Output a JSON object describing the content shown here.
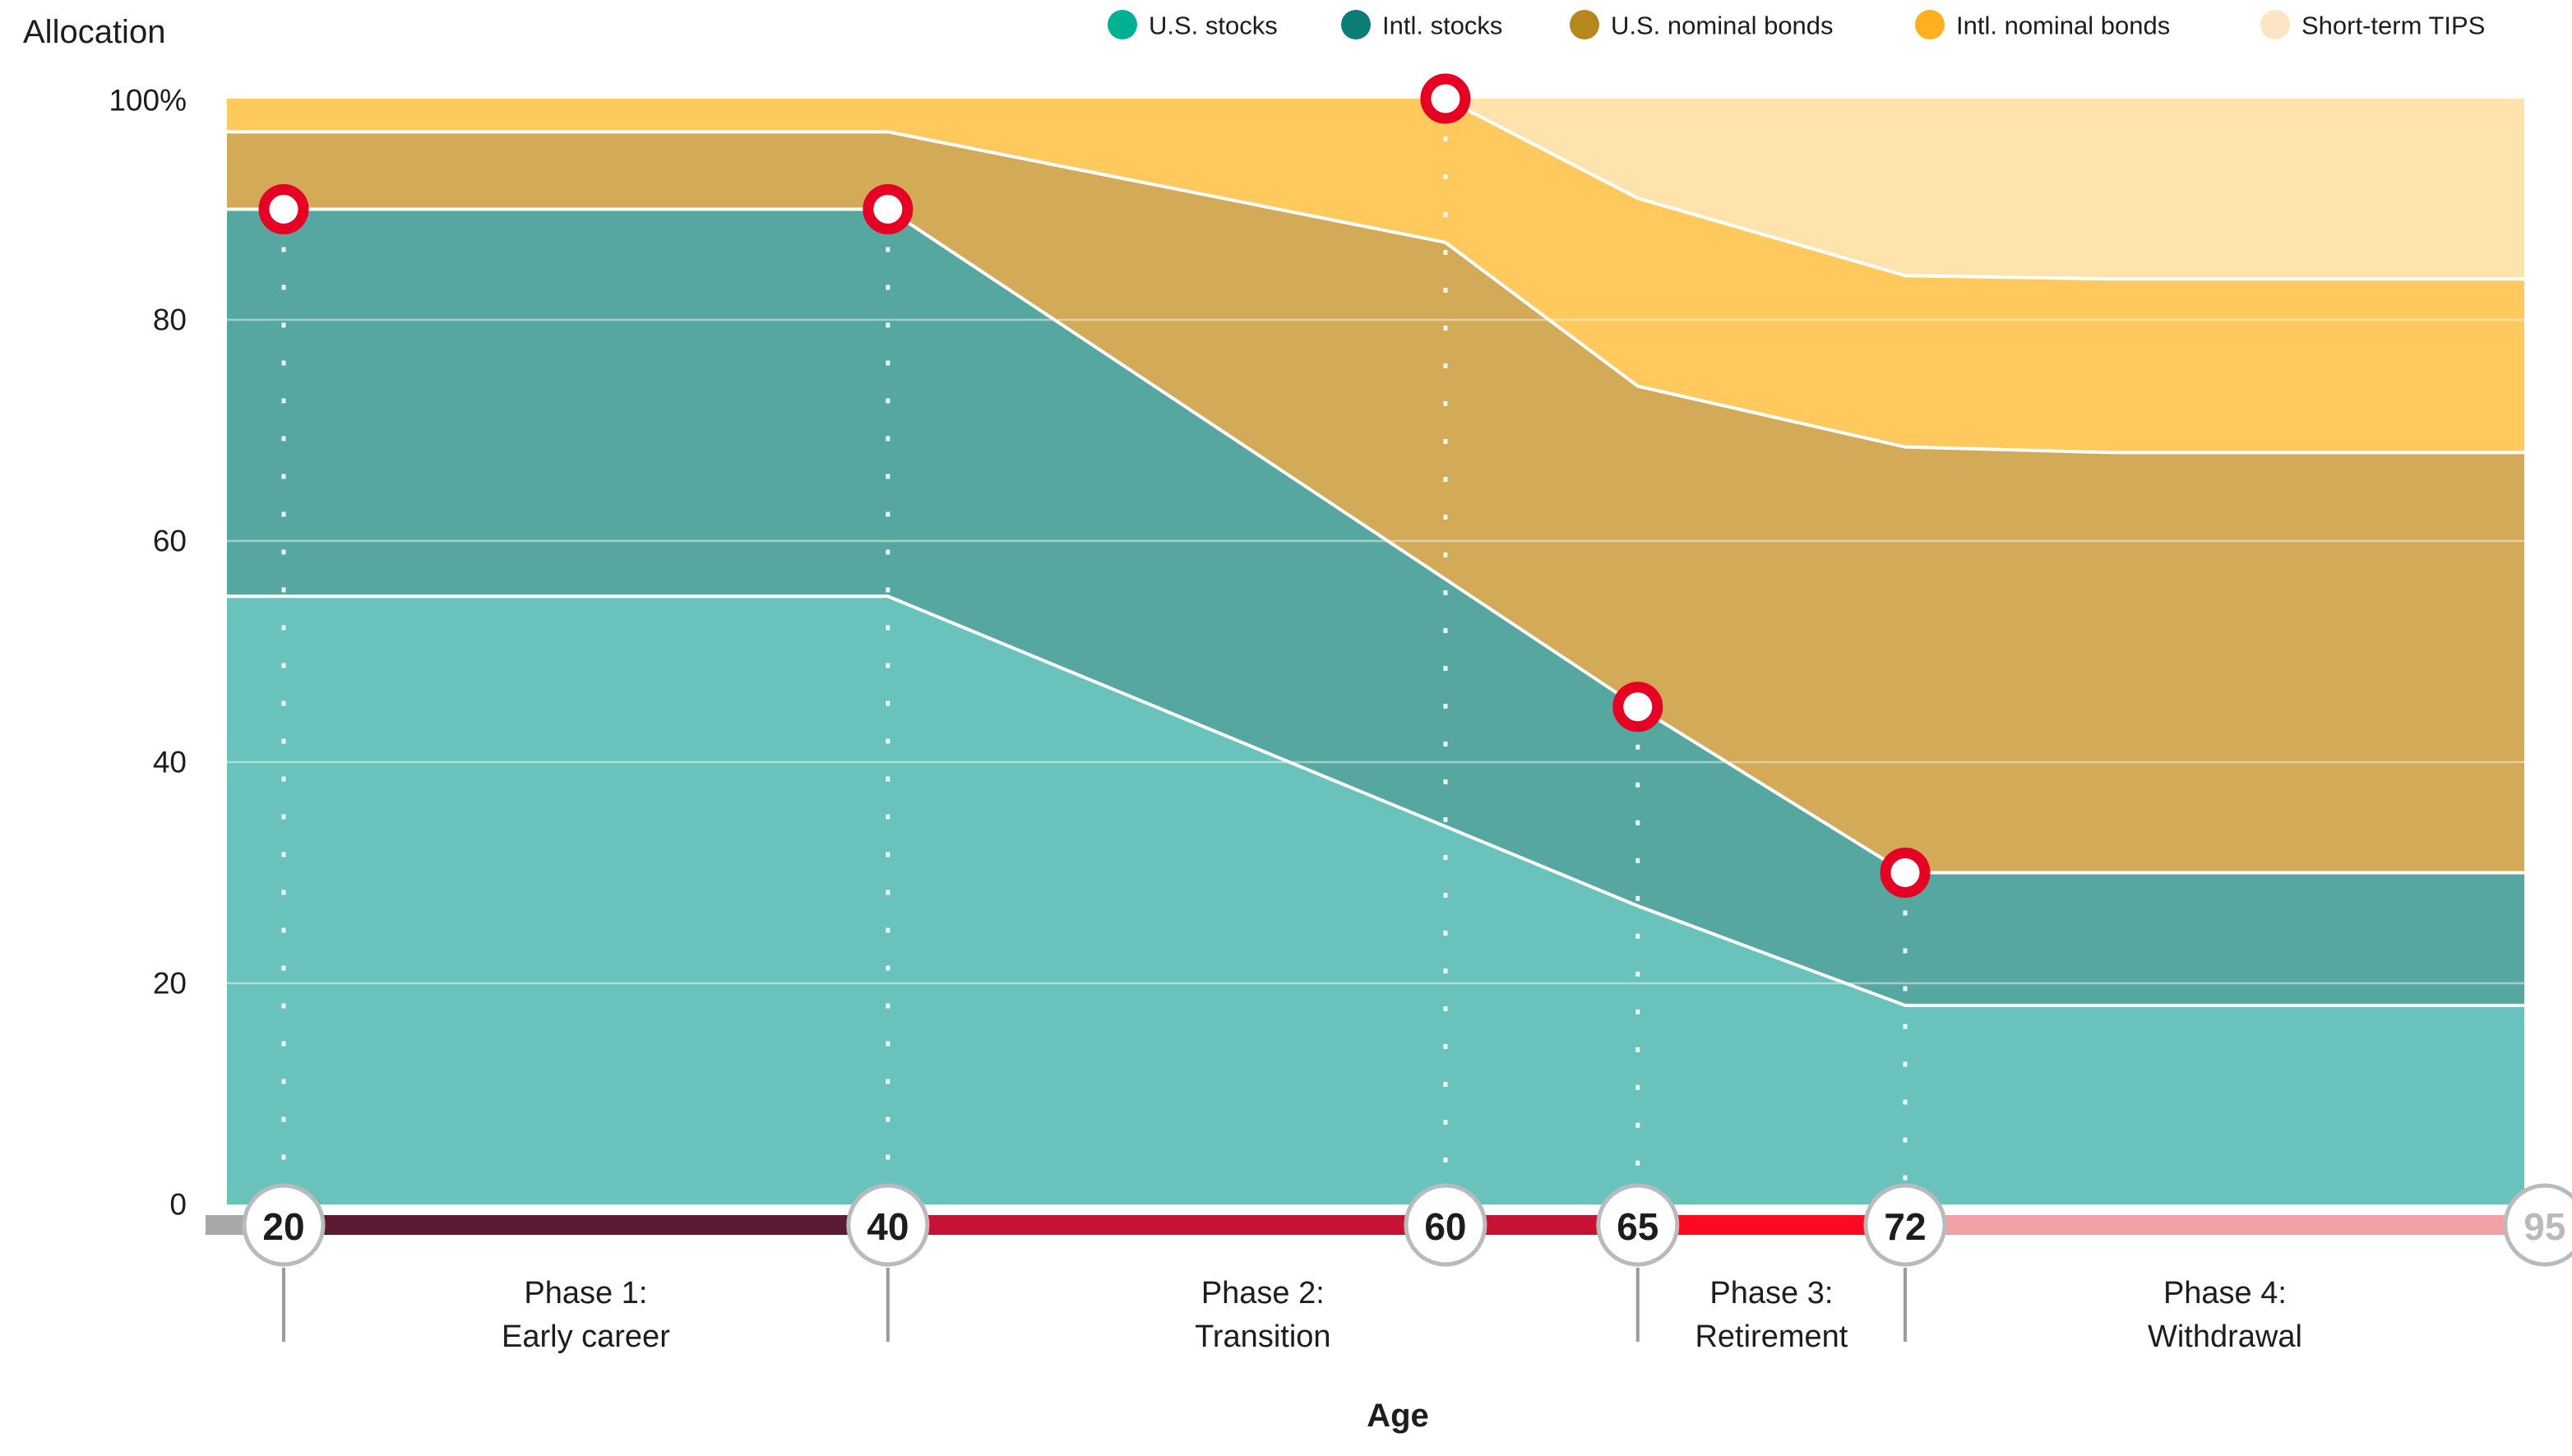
{
  "page": {
    "y_axis_title": "Allocation",
    "x_axis_title": "Age"
  },
  "legend": {
    "items": [
      {
        "label": "U.S. stocks",
        "dot_color": "#00b092",
        "x": 1365
      },
      {
        "label": "Intl. stocks",
        "dot_color": "#0a7e74",
        "x": 1649
      },
      {
        "label": "U.S. nominal bonds",
        "dot_color": "#b5871c",
        "x": 1927
      },
      {
        "label": "Intl. nominal bonds",
        "dot_color": "#ffb01e",
        "x": 2347
      },
      {
        "label": "Short-term TIPS",
        "dot_color": "#fbe5c3",
        "x": 2767
      }
    ]
  },
  "y_axis": {
    "ticks": [
      {
        "label": "100%",
        "value": 100
      },
      {
        "label": "80",
        "value": 80
      },
      {
        "label": "60",
        "value": 60
      },
      {
        "label": "40",
        "value": 40
      },
      {
        "label": "20",
        "value": 20
      },
      {
        "label": "0",
        "value": 0
      }
    ]
  },
  "x_axis": {
    "circles": [
      {
        "label": "20",
        "f": 0.0247,
        "muted": false
      },
      {
        "label": "40",
        "f": 0.2877,
        "muted": false
      },
      {
        "label": "60",
        "f": 0.5304,
        "muted": false
      },
      {
        "label": "65",
        "f": 0.6141,
        "muted": false
      },
      {
        "label": "72",
        "f": 0.7305,
        "muted": false
      },
      {
        "label": "95",
        "f": 1.0089,
        "muted": true
      }
    ],
    "segments": [
      {
        "name": "pre-20",
        "from_f": -0.0093,
        "to_f": 0.0247,
        "color": "#a7a8aa"
      },
      {
        "name": "phase-1",
        "from_f": 0.0247,
        "to_f": 0.2877,
        "color": "#5a1b33"
      },
      {
        "name": "phase-2",
        "from_f": 0.2877,
        "to_f": 0.6141,
        "color": "#c41334"
      },
      {
        "name": "phase-3",
        "from_f": 0.6141,
        "to_f": 0.7305,
        "color": "#fb0a21"
      },
      {
        "name": "phase-4",
        "from_f": 0.7305,
        "to_f": 1.0107,
        "color": "#f2a0a6"
      }
    ],
    "phase_dividers_f": [
      0.0247,
      0.2877,
      0.6141,
      0.7305
    ]
  },
  "phases": [
    {
      "line1": "Phase 1:",
      "line2": "Early career",
      "from_f": 0.0247,
      "to_f": 0.2877
    },
    {
      "line1": "Phase 2:",
      "line2": "Transition",
      "from_f": 0.2877,
      "to_f": 0.6141
    },
    {
      "line1": "Phase 3:",
      "line2": "Retirement",
      "from_f": 0.6141,
      "to_f": 0.7305
    },
    {
      "line1": "Phase 4:",
      "line2": "Withdrawal",
      "from_f": 0.7305,
      "to_f": 1.0089
    }
  ],
  "chart_data": {
    "type": "area",
    "subtype": "stacked-area-glide-path",
    "title": "",
    "xlabel": "Age",
    "ylabel": "Allocation",
    "ylim": [
      0,
      100
    ],
    "grid_values": [
      20,
      40,
      60,
      80
    ],
    "legend_position": "top-right",
    "x_ages": [
      20,
      40,
      60,
      65,
      72,
      95
    ],
    "age_fractions": [
      0.0247,
      0.2877,
      0.5304,
      0.6141,
      0.7305,
      1.0
    ],
    "series": [
      {
        "name": "U.S. stocks",
        "values": [
          55,
          55,
          34,
          27,
          18,
          18
        ],
        "area_color": "#69c3bc"
      },
      {
        "name": "Intl. stocks",
        "values": [
          35,
          35,
          22,
          18,
          12,
          12
        ],
        "area_color": "#56a79f"
      },
      {
        "name": "U.S. nominal bonds",
        "values": [
          7,
          7,
          31,
          29,
          38,
          38
        ],
        "area_color": "#d3aa58"
      },
      {
        "name": "Intl. nominal bonds",
        "values": [
          3,
          3,
          13,
          17,
          16,
          16
        ],
        "area_color": "#ffc95e"
      },
      {
        "name": "Short-term TIPS",
        "values": [
          0,
          0,
          0,
          9,
          16,
          16
        ],
        "area_color": "#ffe3ad"
      }
    ],
    "boundaries": {
      "chart_top": [
        [
          0,
          100
        ],
        [
          1,
          100
        ]
      ],
      "intl_bonds_top": [
        [
          0,
          100
        ],
        [
          0.5304,
          100
        ],
        [
          0.6141,
          91
        ],
        [
          0.7305,
          84
        ],
        [
          0.82,
          83.7
        ],
        [
          1,
          83.7
        ]
      ],
      "us_bonds_top": [
        [
          0,
          97
        ],
        [
          0.2877,
          97
        ],
        [
          0.5304,
          87
        ],
        [
          0.6141,
          74
        ],
        [
          0.7305,
          68.5
        ],
        [
          0.82,
          68
        ],
        [
          1,
          68
        ]
      ],
      "equity_top": [
        [
          0,
          90
        ],
        [
          0.2877,
          90
        ],
        [
          0.6141,
          45
        ],
        [
          0.7305,
          30
        ],
        [
          1,
          30
        ]
      ],
      "us_stocks_top": [
        [
          0,
          55
        ],
        [
          0.2877,
          55
        ],
        [
          0.6141,
          27
        ],
        [
          0.7305,
          18
        ],
        [
          1,
          18
        ]
      ]
    },
    "paint_order": [
      {
        "boundary": "chart_top",
        "color": "#ffe3ad"
      },
      {
        "boundary": "intl_bonds_top",
        "color": "#ffc95e"
      },
      {
        "boundary": "us_bonds_top",
        "color": "#d3aa58"
      },
      {
        "boundary": "equity_top",
        "color": "#56a79f"
      },
      {
        "boundary": "us_stocks_top",
        "color": "#69c3bc"
      }
    ],
    "stroked_boundaries": [
      {
        "boundary": "us_stocks_top",
        "from_f": 0
      },
      {
        "boundary": "equity_top",
        "from_f": 0
      },
      {
        "boundary": "us_bonds_top",
        "from_f": 0
      },
      {
        "boundary": "intl_bonds_top",
        "from_f": 0.5304
      }
    ],
    "markers": [
      {
        "age": 20,
        "f": 0.0247,
        "value": 90
      },
      {
        "age": 40,
        "f": 0.2877,
        "value": 90
      },
      {
        "age": 60,
        "f": 0.5304,
        "value": 100
      },
      {
        "age": 65,
        "f": 0.6141,
        "value": 45
      },
      {
        "age": 72,
        "f": 0.7305,
        "value": 30
      }
    ],
    "marker_color": "#e60023",
    "guide_color": "#ffffff",
    "gridline_color": "#ffffff"
  },
  "colors": {
    "text_dark": "#1d1d21",
    "circle_border": "#b9babc",
    "muted_text": "#b9babc",
    "divider_tick": "#9a9b9d"
  }
}
